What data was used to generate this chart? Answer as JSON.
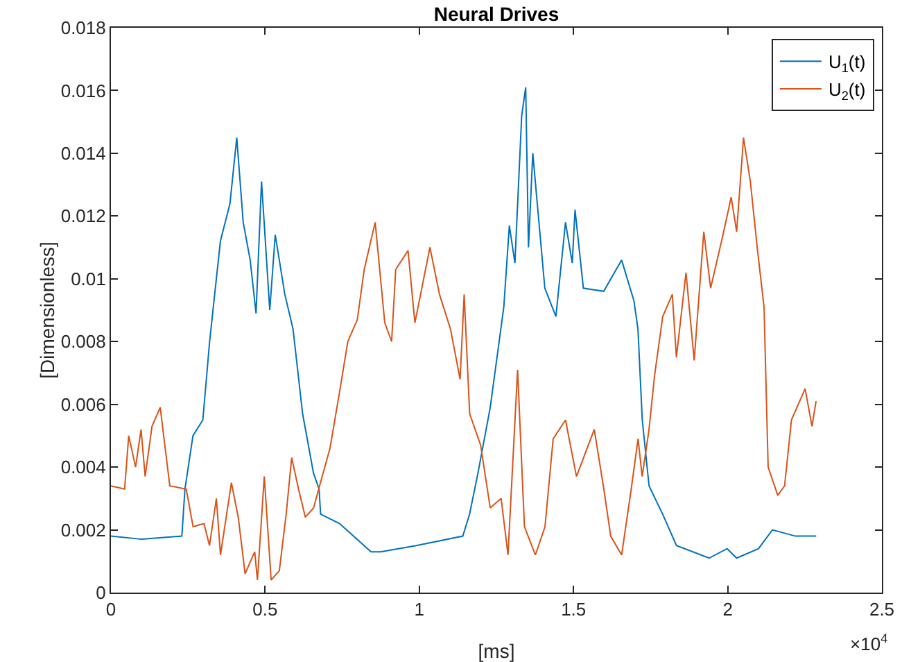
{
  "chart_data": {
    "type": "line",
    "title": "Neural Drives",
    "xlabel": "[ms]",
    "ylabel": "[Dimensionless]",
    "annotations": [
      "×10$^{4}$"
    ],
    "xlim": [
      0,
      2.5
    ],
    "xticks": [
      0,
      0.5,
      1,
      1.5,
      2,
      2.5
    ],
    "ylim": [
      0,
      0.018
    ],
    "yticks": [
      0,
      0.002,
      0.004,
      0.006,
      0.008,
      0.01,
      0.012,
      0.014,
      0.016,
      0.018
    ],
    "grid": false,
    "legend": "top right",
    "marker": "none",
    "line_style": "solid",
    "series": [
      {
        "name": "U$_{1}$(t)",
        "color": "#0072bd",
        "x": [
          0,
          0.1,
          0.23,
          0.24,
          0.266,
          0.298,
          0.32,
          0.355,
          0.386,
          0.408,
          0.429,
          0.4515,
          0.4706,
          0.4884,
          0.515,
          0.5328,
          0.564,
          0.5905,
          0.6216,
          0.657,
          0.675,
          0.68,
          0.7415,
          0.8436,
          0.875,
          0.99,
          1.141,
          1.163,
          1.19,
          1.23,
          1.274,
          1.292,
          1.31,
          1.332,
          1.345,
          1.354,
          1.368,
          1.407,
          1.443,
          1.474,
          1.496,
          1.505,
          1.532,
          1.598,
          1.656,
          1.696,
          1.709,
          1.723,
          1.745,
          1.789,
          1.834,
          1.94,
          1.998,
          2.029,
          2.1,
          2.145,
          2.22,
          2.287
        ],
        "values": [
          0.0018,
          0.0017,
          0.0018,
          0.0033,
          0.005,
          0.0055,
          0.008,
          0.0112,
          0.0124,
          0.0145,
          0.0118,
          0.0106,
          0.0089,
          0.0131,
          0.009,
          0.0114,
          0.0095,
          0.0084,
          0.0057,
          0.0038,
          0.0033,
          0.0025,
          0.0022,
          0.0013,
          0.0013,
          0.0015,
          0.0018,
          0.0025,
          0.0038,
          0.0059,
          0.0091,
          0.0117,
          0.0105,
          0.0152,
          0.0161,
          0.011,
          0.014,
          0.0097,
          0.0088,
          0.0118,
          0.0105,
          0.0122,
          0.0097,
          0.0096,
          0.0106,
          0.0093,
          0.0084,
          0.0055,
          0.0034,
          0.0025,
          0.0015,
          0.0011,
          0.0014,
          0.0011,
          0.0014,
          0.002,
          0.0018,
          0.0018
        ]
      },
      {
        "name": "U$_{2}$(t)",
        "color": "#d95319",
        "x": [
          0,
          0.0444,
          0.0577,
          0.0799,
          0.0977,
          0.111,
          0.1332,
          0.1598,
          0.1909,
          0.2442,
          0.2664,
          0.3019,
          0.3197,
          0.3419,
          0.3552,
          0.3907,
          0.4129,
          0.4351,
          0.4662,
          0.4751,
          0.4973,
          0.5195,
          0.5461,
          0.5683,
          0.5861,
          0.6083,
          0.6305,
          0.6571,
          0.6793,
          0.7104,
          0.7415,
          0.7681,
          0.799,
          0.8214,
          0.8569,
          0.888,
          0.9102,
          0.9235,
          0.9635,
          0.9857,
          1.0345,
          1.0656,
          1.1011,
          1.1322,
          1.1455,
          1.1633,
          1.1988,
          1.2299,
          1.2654,
          1.2876,
          1.3187,
          1.3409,
          1.3764,
          1.4075,
          1.4341,
          1.4741,
          1.5096,
          1.5673,
          1.5984,
          1.6206,
          1.6561,
          1.6872,
          1.7094,
          1.7227,
          1.7449,
          1.7627,
          1.7893,
          1.8204,
          1.8337,
          1.8648,
          1.8914,
          1.9225,
          1.9447,
          1.9847,
          2.0113,
          2.0291,
          2.0513,
          2.0735,
          2.0957,
          2.1179,
          2.1312,
          2.1623,
          2.1845,
          2.2067,
          2.2511,
          2.2733,
          2.2866
        ],
        "values": [
          0.0034,
          0.0033,
          0.005,
          0.004,
          0.0052,
          0.0037,
          0.0053,
          0.0059,
          0.0034,
          0.0033,
          0.0021,
          0.0022,
          0.0015,
          0.003,
          0.0012,
          0.0035,
          0.0024,
          0.0006,
          0.0013,
          0.0004,
          0.0037,
          0.0004,
          0.0007,
          0.0025,
          0.0043,
          0.0033,
          0.0024,
          0.0027,
          0.0035,
          0.0046,
          0.0064,
          0.008,
          0.0087,
          0.0103,
          0.0118,
          0.0086,
          0.008,
          0.0103,
          0.0109,
          0.0086,
          0.011,
          0.0095,
          0.0084,
          0.0068,
          0.0095,
          0.0057,
          0.0047,
          0.0027,
          0.003,
          0.0012,
          0.0071,
          0.0021,
          0.0012,
          0.0021,
          0.0049,
          0.0055,
          0.0037,
          0.0052,
          0.0033,
          0.0018,
          0.0012,
          0.0033,
          0.0049,
          0.0037,
          0.0052,
          0.0069,
          0.0088,
          0.0095,
          0.0075,
          0.0102,
          0.0074,
          0.0115,
          0.0097,
          0.0114,
          0.0126,
          0.0115,
          0.0145,
          0.0131,
          0.011,
          0.0091,
          0.004,
          0.0031,
          0.0034,
          0.0055,
          0.0065,
          0.0053,
          0.0061
        ]
      }
    ]
  }
}
